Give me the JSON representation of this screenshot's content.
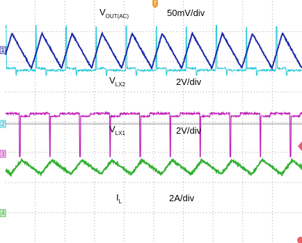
{
  "traces": [
    {
      "symbol": "V",
      "subscript": "OUT(AC)",
      "scale": "50mV/div",
      "marker": "1"
    },
    {
      "symbol": "V",
      "subscript": "LX2",
      "scale": "2V/div",
      "marker": "2"
    },
    {
      "symbol": "V",
      "subscript": "LX1",
      "scale": "2V/div",
      "marker": "3"
    },
    {
      "symbol": "I",
      "subscript": "L",
      "scale": "2A/div",
      "marker": "4"
    }
  ],
  "trigger": "T"
}
